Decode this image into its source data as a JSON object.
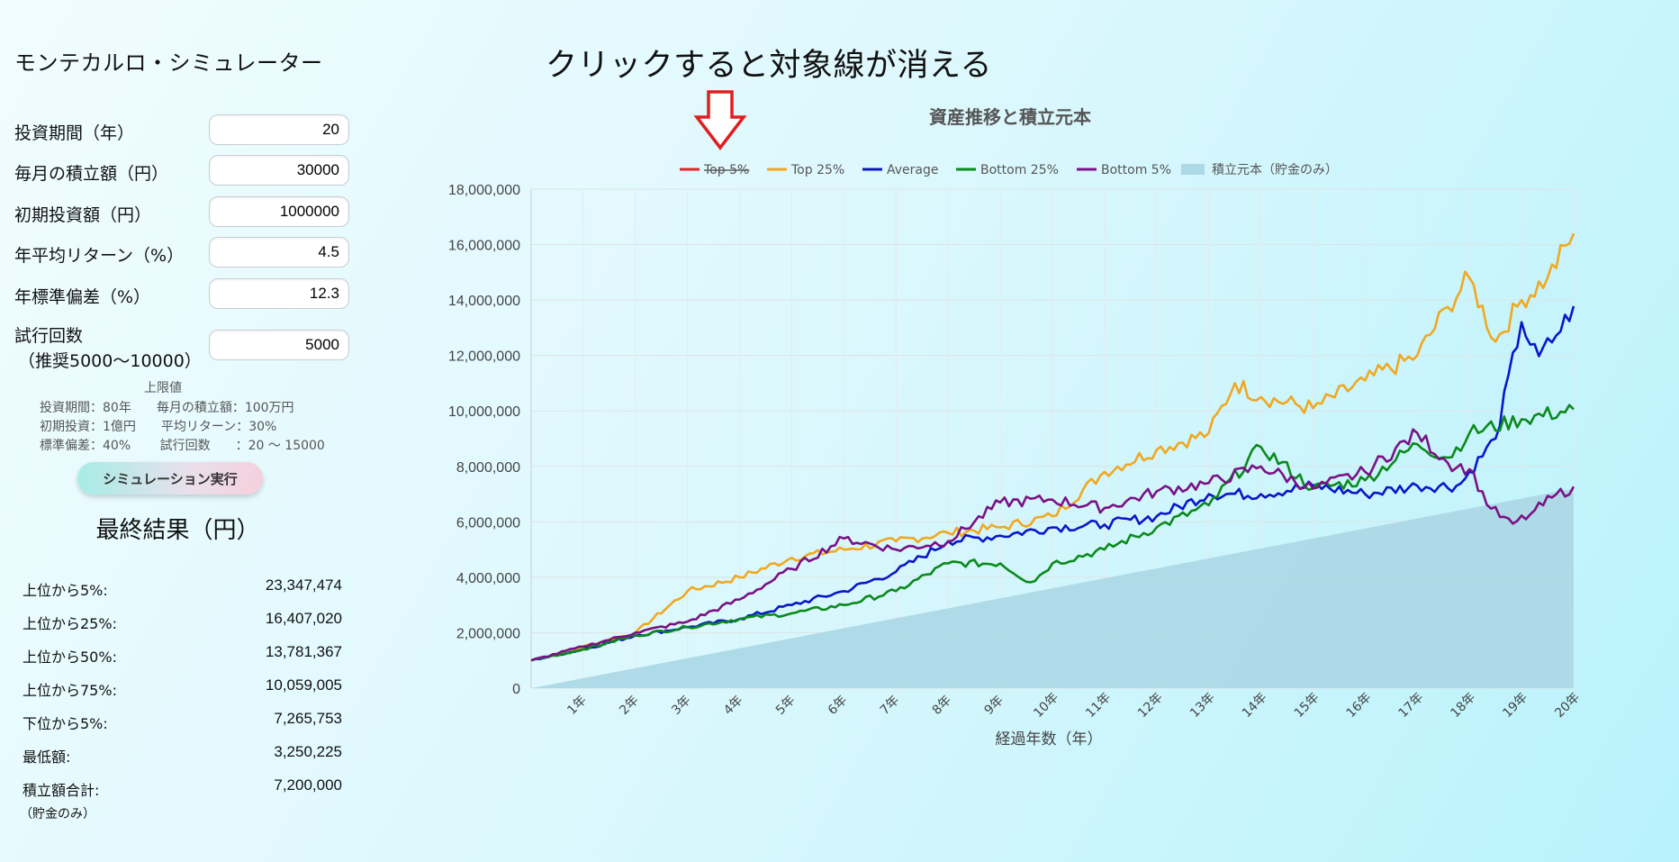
{
  "app": {
    "title": "モンテカルロ・シミュレーター"
  },
  "inputs": [
    {
      "label": "投資期間（年）",
      "value": "20"
    },
    {
      "label": "毎月の積立額（円）",
      "value": "30000"
    },
    {
      "label": "初期投資額（円）",
      "value": "1000000"
    },
    {
      "label": "年平均リターン（%）",
      "value": "4.5"
    },
    {
      "label": "年標準偏差（%）",
      "value": "12.3"
    },
    {
      "label": "試行回数",
      "label2": "（推奨5000〜10000）",
      "value": "5000"
    }
  ],
  "limits": {
    "title": "上限値",
    "rows": [
      "投資期間：80年　　毎月の積立額：100万円",
      "初期投資：1億円　　平均リターン：30%",
      "標準偏差：40%　　 試行回数　　：20 〜 15000"
    ]
  },
  "run_button": "シミュレーション実行",
  "results": {
    "title": "最終結果（円）",
    "rows": [
      {
        "label": "上位から5%:",
        "value": "23,347,474"
      },
      {
        "label": "上位から25%:",
        "value": "16,407,020"
      },
      {
        "label": "上位から50%:",
        "value": "13,781,367"
      },
      {
        "label": "上位から75%:",
        "value": "10,059,005"
      },
      {
        "label": "下位から5%:",
        "value": "7,265,753"
      },
      {
        "label": "最低額:",
        "value": "3,250,225"
      },
      {
        "label": "積立額合計:",
        "value": "7,200,000"
      }
    ],
    "note": "（貯金のみ）"
  },
  "annotation": "クリックすると対象線が消える",
  "chart_data": {
    "type": "line",
    "title": "資産推移と積立元本",
    "xlabel": "経過年数（年）",
    "ylabel": "",
    "ylim": [
      0,
      18000000
    ],
    "yticks": [
      "0",
      "2,000,000",
      "4,000,000",
      "6,000,000",
      "8,000,000",
      "10,000,000",
      "12,000,000",
      "14,000,000",
      "16,000,000",
      "18,000,000"
    ],
    "x": [
      "1年",
      "2年",
      "3年",
      "4年",
      "5年",
      "6年",
      "7年",
      "8年",
      "9年",
      "10年",
      "11年",
      "12年",
      "13年",
      "14年",
      "15年",
      "16年",
      "17年",
      "18年",
      "19年",
      "20年"
    ],
    "legend_position": "top",
    "series": [
      {
        "name": "Top 5%",
        "color": "#e0262b",
        "hidden": true,
        "points": []
      },
      {
        "name": "Top 25%",
        "color": "#f0a820",
        "points": [
          [
            0,
            1000000
          ],
          [
            1,
            1500000
          ],
          [
            2,
            2000000
          ],
          [
            3,
            3500000
          ],
          [
            4,
            4000000
          ],
          [
            5,
            4700000
          ],
          [
            6,
            5000000
          ],
          [
            7,
            5300000
          ],
          [
            8,
            5600000
          ],
          [
            9,
            5800000
          ],
          [
            10,
            6200000
          ],
          [
            11,
            7800000
          ],
          [
            12,
            8600000
          ],
          [
            13,
            9200000
          ],
          [
            13.5,
            11000000
          ],
          [
            14,
            10500000
          ],
          [
            15,
            10100000
          ],
          [
            16,
            11100000
          ],
          [
            17,
            12000000
          ],
          [
            17.6,
            13800000
          ],
          [
            18,
            14800000
          ],
          [
            18.5,
            12500000
          ],
          [
            19,
            14000000
          ],
          [
            19.5,
            14800000
          ],
          [
            20,
            16400000
          ]
        ]
      },
      {
        "name": "Average",
        "color": "#0a17c8",
        "points": [
          [
            0,
            1000000
          ],
          [
            1,
            1400000
          ],
          [
            2,
            1900000
          ],
          [
            3,
            2200000
          ],
          [
            4,
            2500000
          ],
          [
            5,
            3000000
          ],
          [
            6,
            3500000
          ],
          [
            7,
            4200000
          ],
          [
            8,
            5300000
          ],
          [
            9,
            5500000
          ],
          [
            10,
            5800000
          ],
          [
            11,
            5900000
          ],
          [
            12,
            6200000
          ],
          [
            13,
            7000000
          ],
          [
            14,
            7000000
          ],
          [
            15,
            7300000
          ],
          [
            16,
            7000000
          ],
          [
            17,
            7300000
          ],
          [
            17.8,
            7300000
          ],
          [
            18.5,
            9000000
          ],
          [
            19,
            13200000
          ],
          [
            19.3,
            11900000
          ],
          [
            19.7,
            12800000
          ],
          [
            20,
            13780000
          ]
        ]
      },
      {
        "name": "Bottom 25%",
        "color": "#0b8a1d",
        "points": [
          [
            0,
            1000000
          ],
          [
            1,
            1400000
          ],
          [
            2,
            1900000
          ],
          [
            3,
            2200000
          ],
          [
            4,
            2500000
          ],
          [
            5,
            2700000
          ],
          [
            6,
            3000000
          ],
          [
            7,
            3500000
          ],
          [
            8,
            4500000
          ],
          [
            9,
            4500000
          ],
          [
            9.6,
            3800000
          ],
          [
            10,
            4500000
          ],
          [
            11,
            5000000
          ],
          [
            12,
            5800000
          ],
          [
            13,
            6600000
          ],
          [
            14,
            8700000
          ],
          [
            15,
            7200000
          ],
          [
            16,
            7500000
          ],
          [
            17,
            8800000
          ],
          [
            17.6,
            8300000
          ],
          [
            18,
            9200000
          ],
          [
            19,
            9700000
          ],
          [
            20,
            10060000
          ]
        ]
      },
      {
        "name": "Bottom 5%",
        "color": "#7a1285",
        "points": [
          [
            0,
            1000000
          ],
          [
            1,
            1500000
          ],
          [
            2,
            2000000
          ],
          [
            3,
            2400000
          ],
          [
            4,
            3200000
          ],
          [
            5,
            4300000
          ],
          [
            6,
            5400000
          ],
          [
            7,
            5000000
          ],
          [
            8,
            5300000
          ],
          [
            9,
            6700000
          ],
          [
            10,
            6800000
          ],
          [
            11,
            6500000
          ],
          [
            12,
            7100000
          ],
          [
            13,
            7400000
          ],
          [
            14,
            8000000
          ],
          [
            15,
            7200000
          ],
          [
            16,
            7800000
          ],
          [
            17,
            9200000
          ],
          [
            17.6,
            8100000
          ],
          [
            18,
            7900000
          ],
          [
            18.4,
            6500000
          ],
          [
            18.8,
            5900000
          ],
          [
            19.2,
            6300000
          ],
          [
            19.6,
            6900000
          ],
          [
            20,
            7270000
          ]
        ]
      },
      {
        "name": "積立元本（貯金のみ）",
        "color": "#add8e6",
        "type": "area",
        "points": [
          [
            0,
            0
          ],
          [
            20,
            7200000
          ]
        ]
      }
    ]
  }
}
